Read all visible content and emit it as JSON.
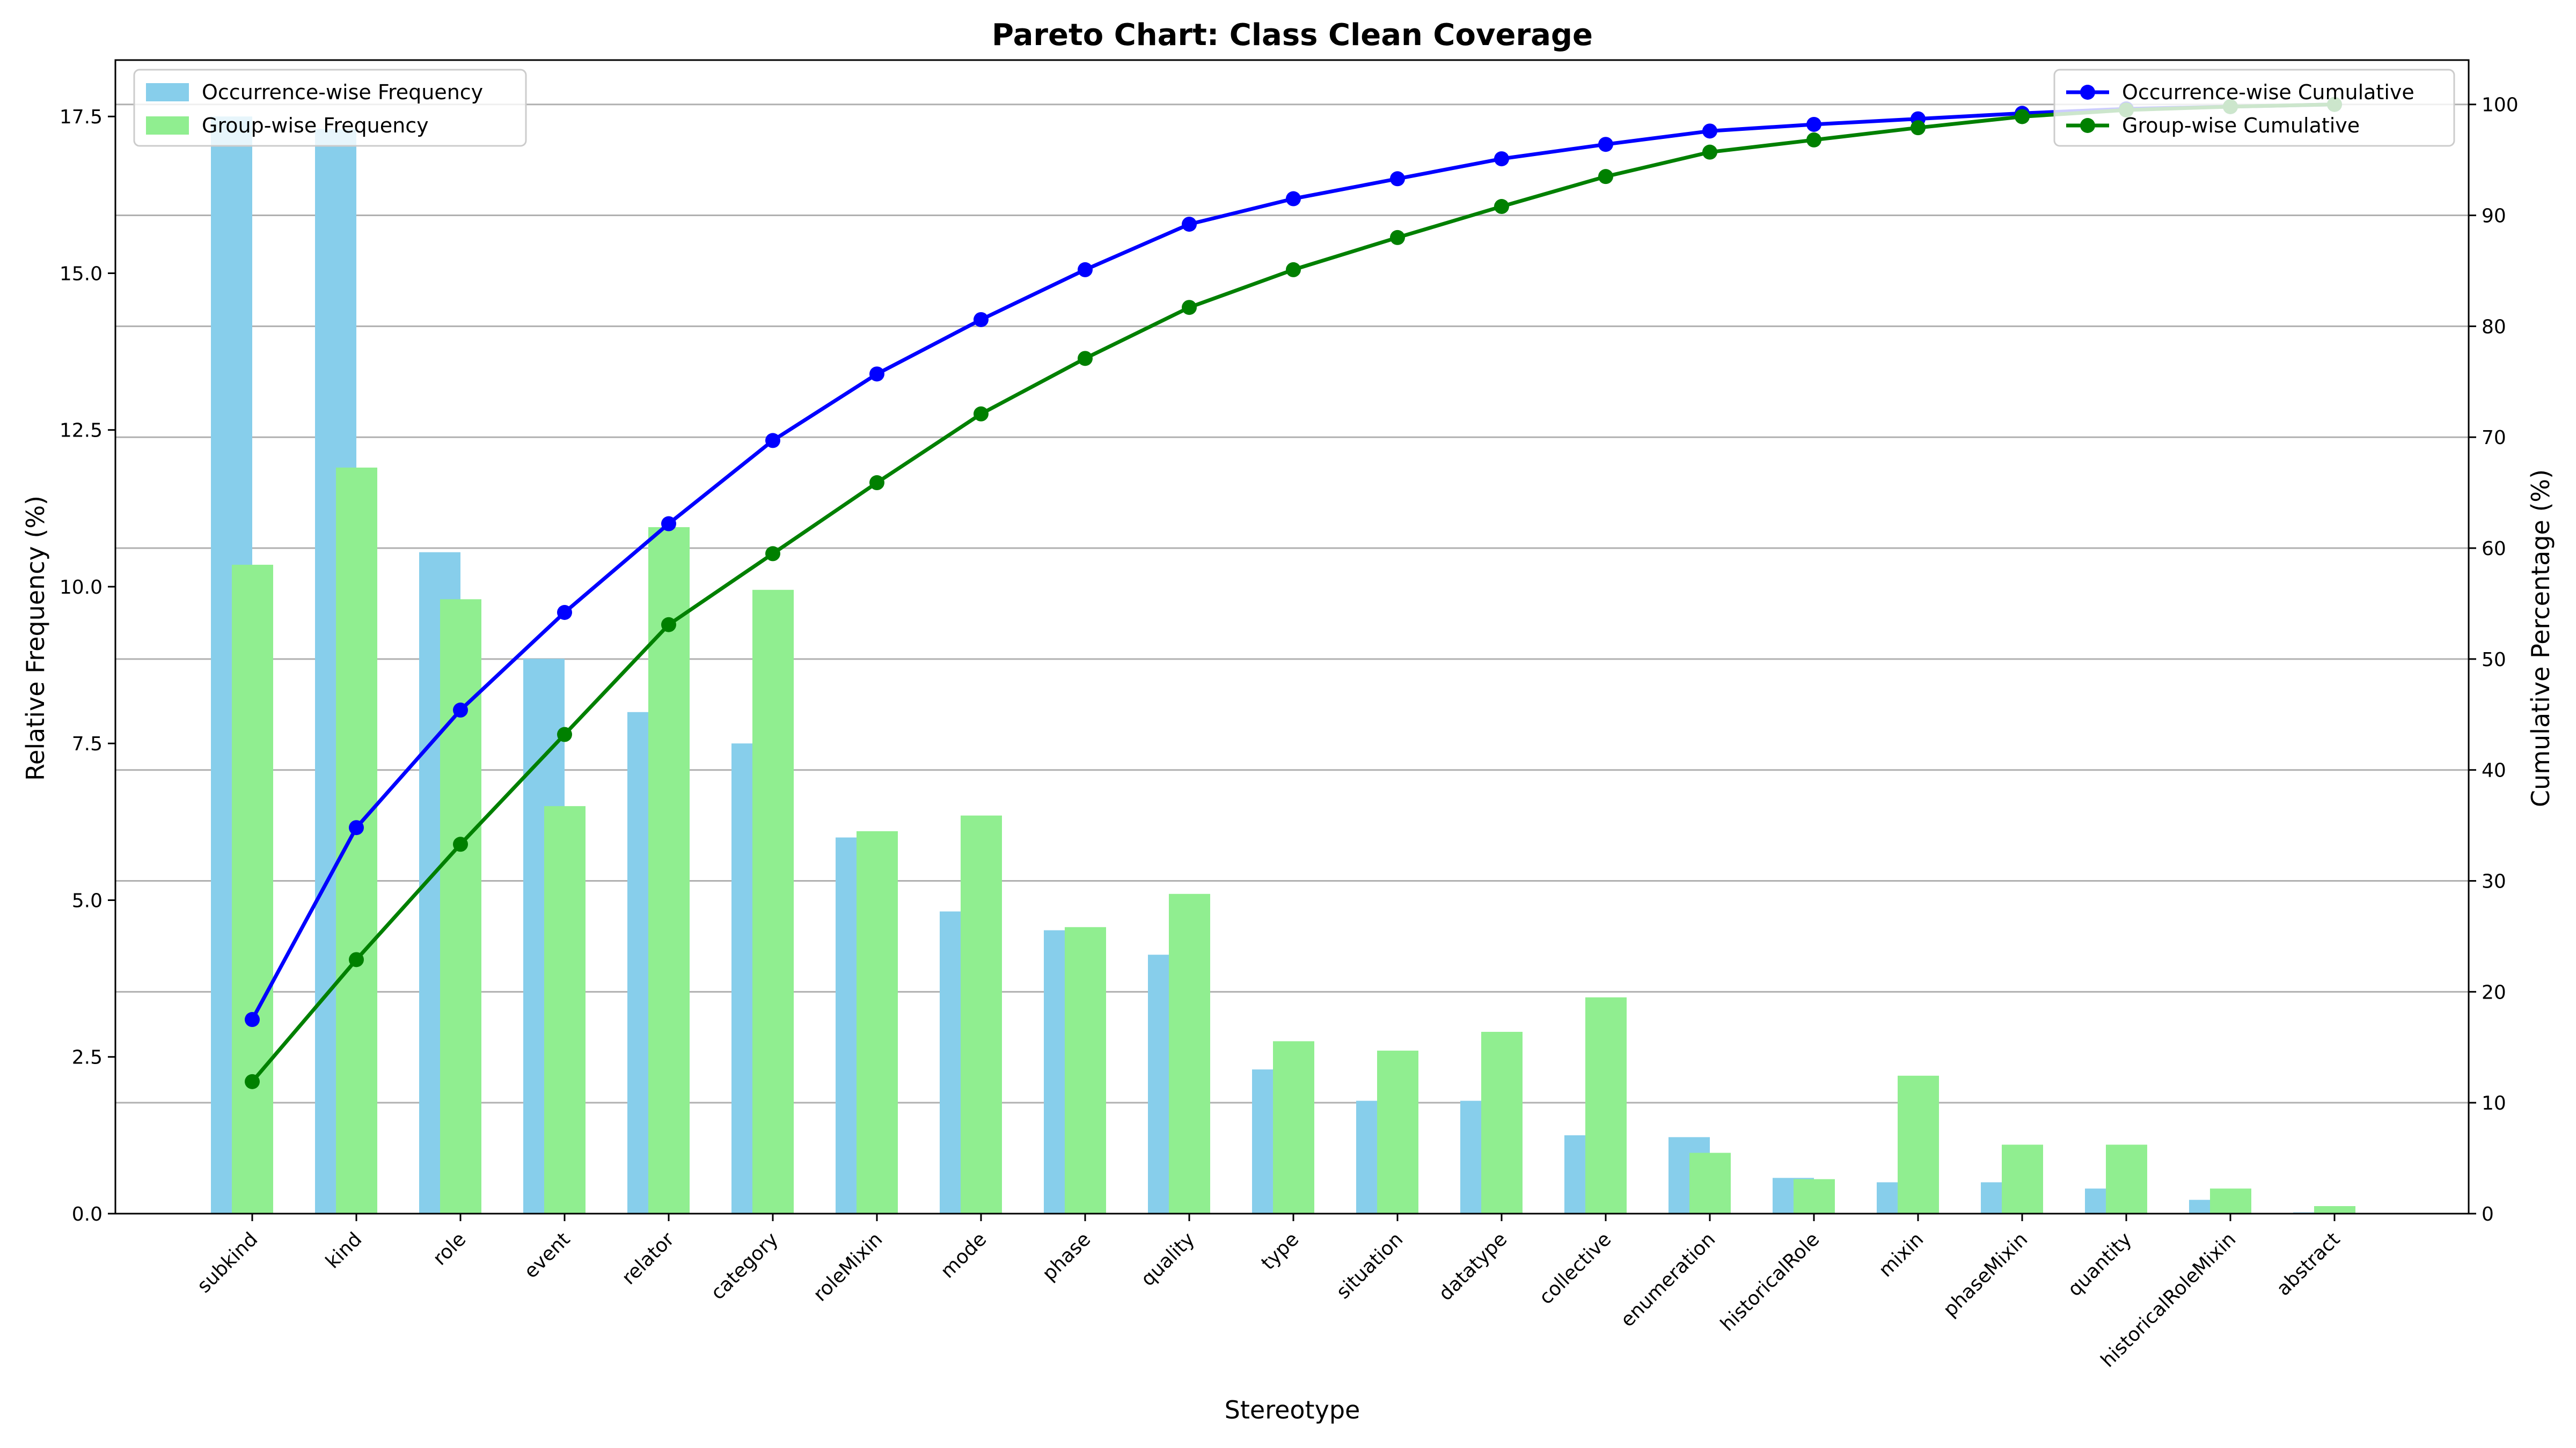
{
  "chart_data": {
    "type": "bar",
    "title": "Pareto Chart: Class Clean Coverage",
    "xlabel": "Stereotype",
    "ylabel": "Relative Frequency (%)",
    "y2label": "Cumulative Percentage (%)",
    "ylim": [
      0,
      18.4
    ],
    "y2lim": [
      0,
      104
    ],
    "yticks": [
      "0.0",
      "2.5",
      "5.0",
      "7.5",
      "10.0",
      "12.5",
      "15.0",
      "17.5"
    ],
    "y2ticks": [
      "0",
      "10",
      "20",
      "30",
      "40",
      "50",
      "60",
      "70",
      "80",
      "90",
      "100"
    ],
    "grid": "right-axis horizontal",
    "legend_left_placement": "top-left",
    "legend_right_placement": "top-right",
    "categories": [
      "subkind",
      "kind",
      "role",
      "event",
      "relator",
      "category",
      "roleMixin",
      "mode",
      "phase",
      "quality",
      "type",
      "situation",
      "datatype",
      "collective",
      "enumeration",
      "historicalRole",
      "mixin",
      "phaseMixin",
      "quantity",
      "historicalRoleMixin",
      "abstract"
    ],
    "series": [
      {
        "name": "Occurrence-wise Frequency",
        "kind": "bar",
        "axis": "left",
        "color": "#87ceeb",
        "values": [
          17.5,
          17.3,
          10.55,
          8.85,
          8.0,
          7.5,
          6.0,
          4.82,
          4.52,
          4.13,
          2.3,
          1.8,
          1.8,
          1.25,
          1.22,
          0.57,
          0.5,
          0.5,
          0.4,
          0.22,
          0.02
        ]
      },
      {
        "name": "Group-wise Frequency",
        "kind": "bar",
        "axis": "left",
        "color": "#90ee90",
        "values": [
          10.35,
          11.9,
          9.8,
          6.5,
          10.95,
          9.95,
          6.1,
          6.35,
          4.57,
          5.1,
          2.75,
          2.6,
          2.9,
          3.45,
          0.97,
          0.55,
          2.2,
          1.1,
          1.1,
          0.4,
          0.12
        ]
      },
      {
        "name": "Occurrence-wise Cumulative",
        "kind": "line",
        "axis": "right",
        "color": "#0000ff",
        "values": [
          17.5,
          34.8,
          45.4,
          54.2,
          62.2,
          69.7,
          75.7,
          80.6,
          85.1,
          89.2,
          91.5,
          93.3,
          95.1,
          96.4,
          97.6,
          98.2,
          98.7,
          99.2,
          99.6,
          99.8,
          100.0
        ]
      },
      {
        "name": "Group-wise Cumulative",
        "kind": "line",
        "axis": "right",
        "color": "#008000",
        "values": [
          11.9,
          22.9,
          33.3,
          43.2,
          53.1,
          59.5,
          65.9,
          72.1,
          77.1,
          81.7,
          85.1,
          88.0,
          90.8,
          93.5,
          95.7,
          96.8,
          97.9,
          98.9,
          99.5,
          99.8,
          100.0
        ]
      }
    ]
  }
}
